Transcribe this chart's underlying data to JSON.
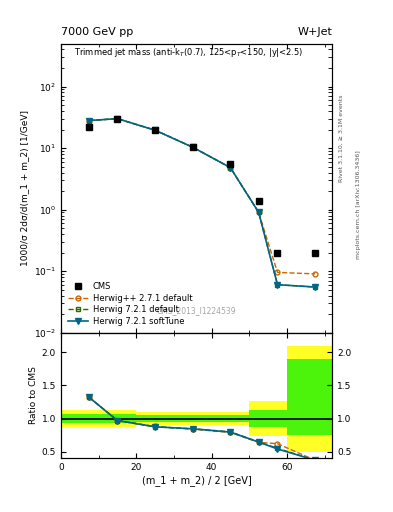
{
  "title_top": "7000 GeV pp",
  "title_right": "W+Jet",
  "plot_title": "Trimmed jet mass (anti-k$_T$(0.7), 125<p$_T$<150, |y|<2.5)",
  "xlabel": "(m_1 + m_2) / 2 [GeV]",
  "ylabel_main": "1000/σ 2dσ/d(m_1 + m_2) [1/GeV]",
  "ylabel_ratio": "Ratio to CMS",
  "watermark": "CMS_2013_I1224539",
  "right_label1": "mcplots.cern.ch [arXiv:1306.3436]",
  "right_label2": "Rivet 3.1.10, ≥ 3.1M events",
  "x_data": [
    7.5,
    15.0,
    25.0,
    35.0,
    45.0,
    52.5,
    57.5,
    67.5
  ],
  "cms_y": [
    22.0,
    30.0,
    20.0,
    10.5,
    5.5,
    1.4,
    0.2,
    0.2
  ],
  "herwig_pp_y": [
    28.0,
    30.0,
    19.5,
    10.3,
    4.8,
    0.9,
    0.095,
    0.09
  ],
  "herwig721_default_y": [
    28.0,
    30.0,
    19.5,
    10.3,
    4.8,
    0.9,
    0.06,
    0.055
  ],
  "herwig721_soft_y": [
    28.0,
    30.0,
    19.5,
    10.3,
    4.8,
    0.9,
    0.06,
    0.055
  ],
  "ratio_herwig_pp": [
    1.32,
    0.97,
    0.88,
    0.84,
    0.79,
    0.64,
    0.62,
    0.37
  ],
  "ratio_herwig721_default": [
    1.32,
    0.97,
    0.875,
    0.845,
    0.8,
    0.645,
    0.55,
    0.37
  ],
  "ratio_herwig721_soft": [
    1.32,
    0.97,
    0.875,
    0.845,
    0.795,
    0.645,
    0.54,
    0.37
  ],
  "band_x_edges": [
    0,
    10,
    20,
    30,
    40,
    50,
    60,
    72
  ],
  "band_yellow_low": [
    0.87,
    0.87,
    0.9,
    0.9,
    0.9,
    0.73,
    0.5,
    0.5
  ],
  "band_yellow_high": [
    1.13,
    1.13,
    1.1,
    1.1,
    1.1,
    1.27,
    2.1,
    2.1
  ],
  "band_green_low": [
    0.93,
    0.93,
    0.95,
    0.95,
    0.95,
    0.87,
    0.75,
    0.75
  ],
  "band_green_high": [
    1.07,
    1.07,
    1.05,
    1.05,
    1.05,
    1.13,
    1.9,
    1.9
  ],
  "color_cms": "#000000",
  "color_herwig_pp": "#cc6600",
  "color_herwig721_default": "#336600",
  "color_herwig721_soft": "#006688",
  "ylim_main": [
    0.01,
    500
  ],
  "ylim_ratio": [
    0.4,
    2.3
  ],
  "xlim": [
    0,
    72
  ]
}
